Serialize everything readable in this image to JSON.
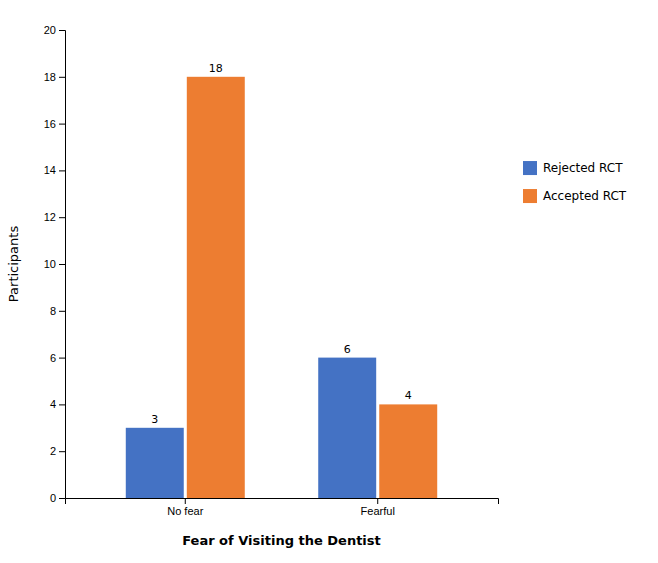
{
  "chart_data": {
    "type": "bar",
    "categories": [
      "No fear",
      "Fearful"
    ],
    "series": [
      {
        "name": "Rejected RCT",
        "color": "#4472C4",
        "values": [
          3,
          6
        ]
      },
      {
        "name": "Accepted RCT",
        "color": "#ED7D31",
        "values": [
          18,
          4
        ]
      }
    ],
    "xlabel": "Fear of Visiting the Dentist",
    "ylabel": "Participants",
    "ylim": [
      0,
      20
    ],
    "yticks": [
      0,
      2,
      4,
      6,
      8,
      10,
      12,
      14,
      16,
      18,
      20
    ],
    "data_labels": true,
    "grid": false,
    "legend": "right"
  }
}
